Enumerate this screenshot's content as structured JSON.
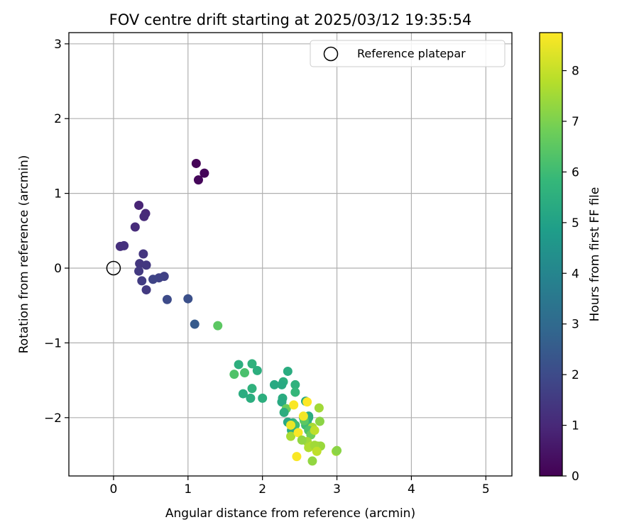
{
  "chart_data": {
    "type": "scatter",
    "title": "FOV centre drift starting at 2025/03/12 19:35:54",
    "xlabel": "Angular distance from reference (arcmin)",
    "ylabel": "Rotation from reference (arcmin)",
    "xlim": [
      -0.6,
      5.35
    ],
    "ylim": [
      -2.78,
      3.15
    ],
    "xticks": [
      0,
      1,
      2,
      3,
      4,
      5
    ],
    "yticks": [
      -2,
      -1,
      0,
      1,
      2,
      3
    ],
    "xtick_labels": [
      "0",
      "1",
      "2",
      "3",
      "4",
      "5"
    ],
    "ytick_labels": [
      "−2",
      "−1",
      "0",
      "1",
      "2",
      "3"
    ],
    "grid": true,
    "legend": {
      "placement": "top-right",
      "label": "Reference platepar",
      "marker": "open-circle"
    },
    "reference_point": {
      "x": 0,
      "y": 0
    },
    "colorbar": {
      "label": "Hours from first FF file",
      "min": 0,
      "max": 8.75,
      "colormap": "viridis",
      "ticks": [
        0,
        1,
        2,
        3,
        4,
        5,
        6,
        7,
        8
      ],
      "tick_labels": [
        "0",
        "1",
        "2",
        "3",
        "4",
        "5",
        "6",
        "7",
        "8"
      ]
    },
    "colormap_stops": [
      "#440154",
      "#482878",
      "#3e4989",
      "#31688e",
      "#26828e",
      "#1f9e89",
      "#35b779",
      "#6ece58",
      "#b5de2b",
      "#fde725"
    ],
    "series": [
      {
        "x": [
          1.11,
          1.22,
          1.14,
          0.34,
          0.43,
          0.41,
          0.29,
          0.09,
          0.14,
          0.4,
          0.35,
          0.44,
          0.34,
          0.38,
          0.68,
          0.61,
          0.53,
          0.44,
          0.72,
          1.0,
          1.09,
          1.4,
          1.62,
          1.68,
          1.86,
          1.76,
          1.93,
          1.74,
          1.86,
          1.84,
          2.0,
          2.16,
          2.34,
          2.28,
          2.26,
          2.44,
          2.27,
          2.26,
          2.58,
          2.44,
          2.32,
          2.29,
          2.55,
          2.62,
          2.76,
          2.62,
          2.6,
          2.58,
          2.41,
          2.44,
          2.39,
          2.34,
          2.67,
          2.62,
          2.77,
          2.56,
          2.65,
          2.38,
          2.7,
          2.48,
          2.6,
          2.53,
          2.38,
          2.74,
          2.78,
          2.66,
          2.62,
          2.7,
          2.73,
          2.99,
          3.0,
          2.67,
          2.46,
          2.6,
          2.55,
          2.42
        ],
        "y": [
          1.4,
          1.27,
          1.18,
          0.84,
          0.73,
          0.69,
          0.55,
          0.29,
          0.3,
          0.19,
          0.06,
          0.04,
          -0.04,
          -0.17,
          -0.11,
          -0.13,
          -0.15,
          -0.29,
          -0.42,
          -0.41,
          -0.75,
          -0.77,
          -1.42,
          -1.29,
          -1.28,
          -1.4,
          -1.37,
          -1.68,
          -1.61,
          -1.74,
          -1.74,
          -1.56,
          -1.38,
          -1.52,
          -1.56,
          -1.56,
          -1.74,
          -1.79,
          -1.78,
          -1.66,
          -1.88,
          -1.93,
          -2.0,
          -2.0,
          -1.87,
          -1.98,
          -2.05,
          -2.1,
          -2.07,
          -2.1,
          -2.17,
          -2.06,
          -2.13,
          -2.17,
          -2.05,
          -2.04,
          -2.23,
          -2.25,
          -2.17,
          -2.2,
          -2.32,
          -2.3,
          -2.1,
          -2.38,
          -2.38,
          -2.38,
          -2.4,
          -2.37,
          -2.45,
          -2.45,
          -2.44,
          -2.58,
          -2.52,
          -1.79,
          -1.98,
          -1.83
        ],
        "hours": [
          0.05,
          0.1,
          0.15,
          0.9,
          1.0,
          1.05,
          1.1,
          1.2,
          1.25,
          1.35,
          1.4,
          1.45,
          1.5,
          1.55,
          1.7,
          1.75,
          1.8,
          1.5,
          2.0,
          2.15,
          2.5,
          6.5,
          6.3,
          5.5,
          5.6,
          6.2,
          5.5,
          5.4,
          5.6,
          5.45,
          5.5,
          5.3,
          5.4,
          5.5,
          5.3,
          5.6,
          5.4,
          5.3,
          5.2,
          5.8,
          6.7,
          5.45,
          5.7,
          5.5,
          7.5,
          5.4,
          5.6,
          6.0,
          5.6,
          6.0,
          5.5,
          5.3,
          7.6,
          6.3,
          7.2,
          6.5,
          6.8,
          7.6,
          7.9,
          8.7,
          7.5,
          7.3,
          8.5,
          7.5,
          7.4,
          7.8,
          7.7,
          7.5,
          7.9,
          7.6,
          7.2,
          7.3,
          8.7,
          8.8,
          8.6,
          8.7
        ]
      }
    ]
  }
}
